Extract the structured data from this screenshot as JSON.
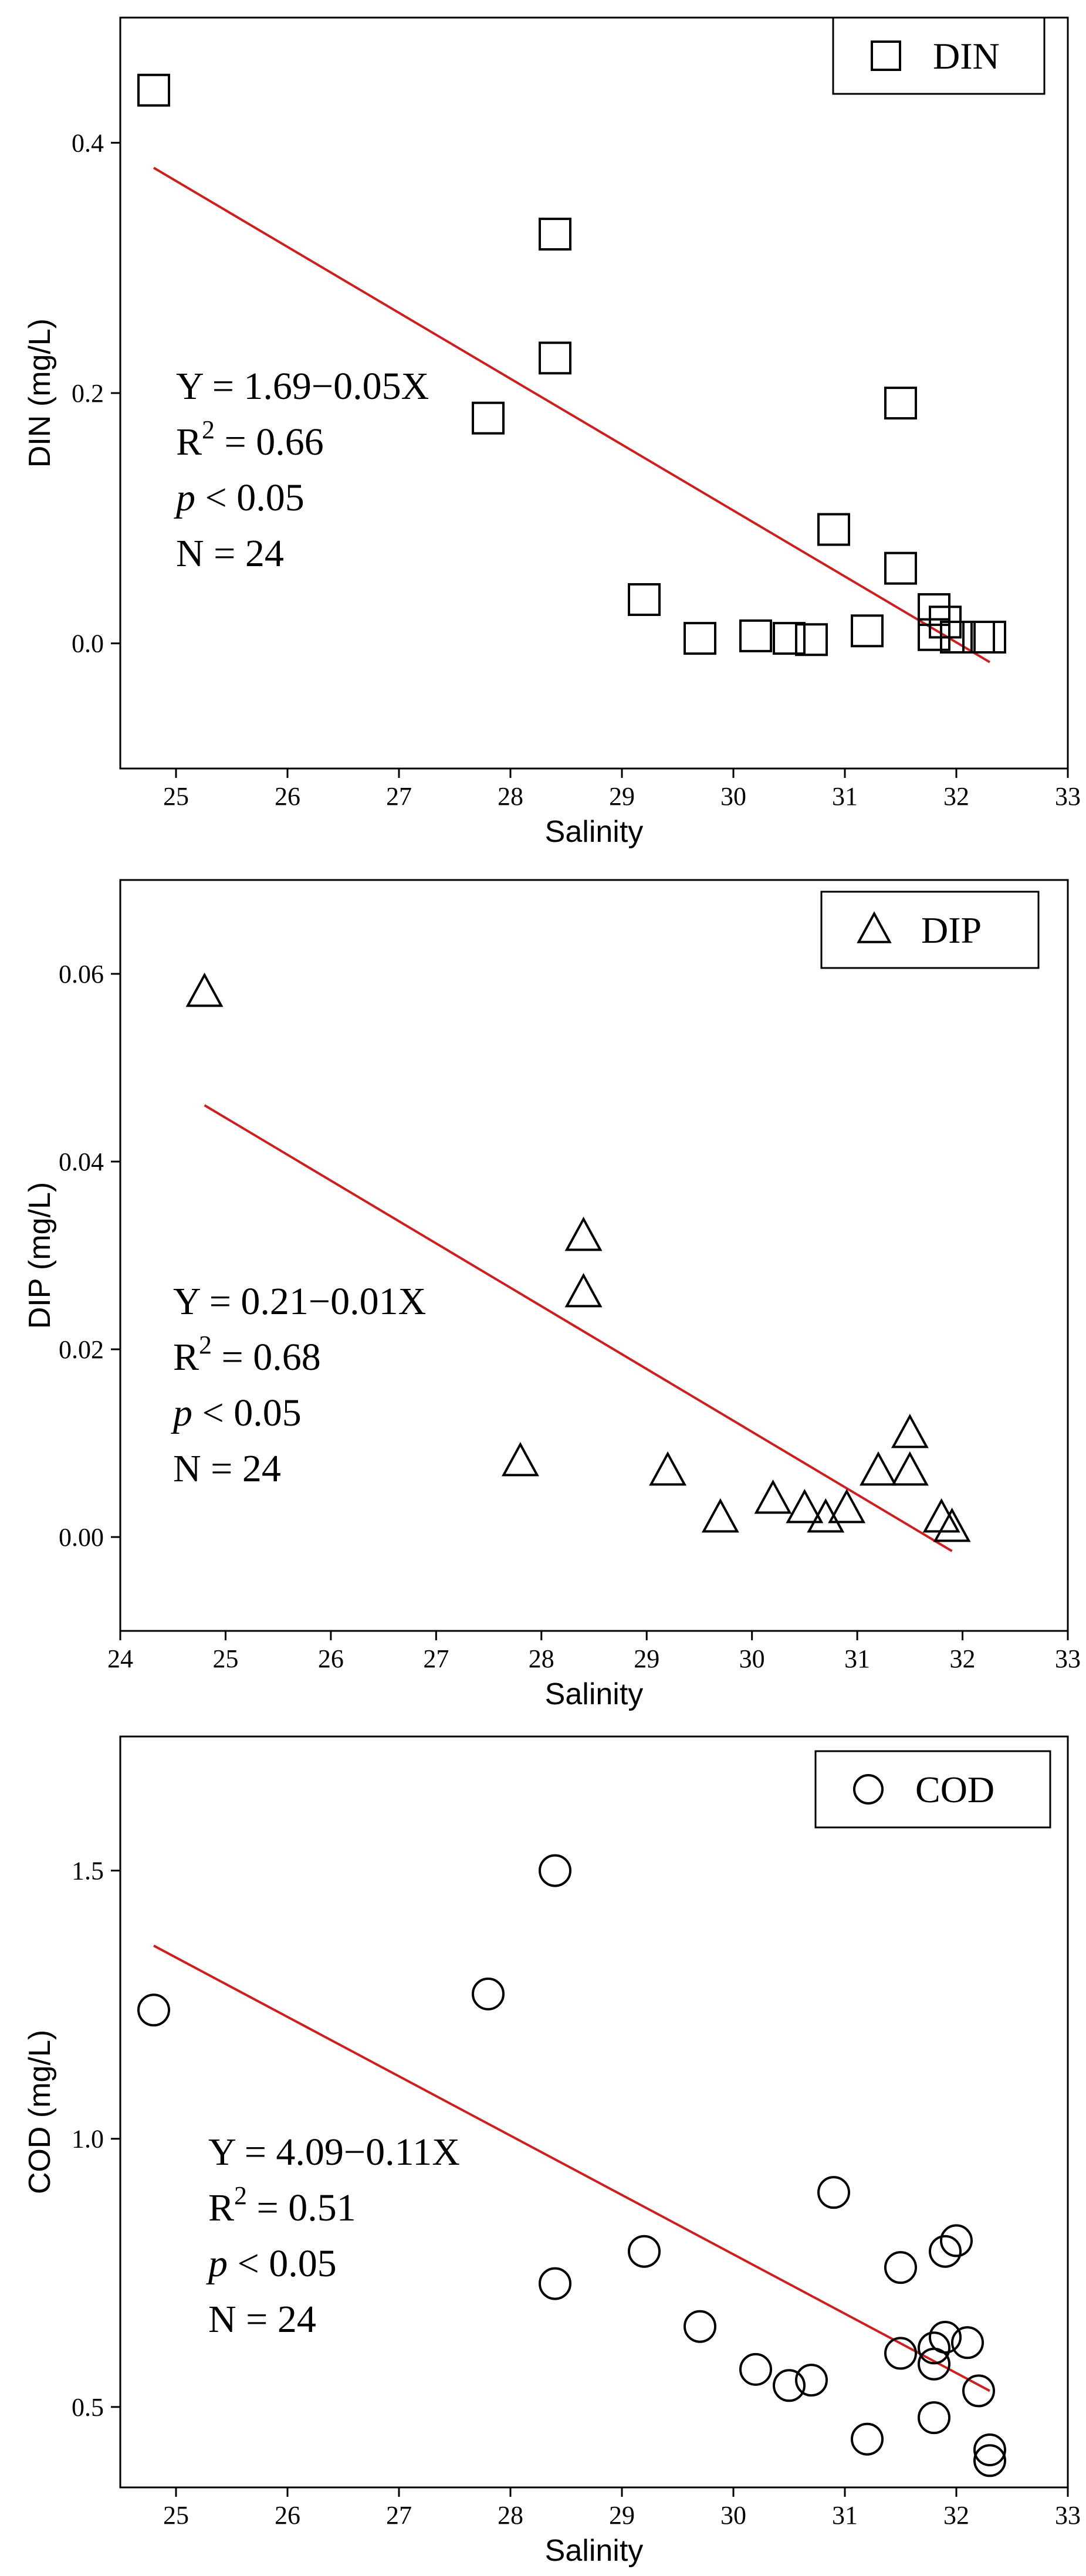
{
  "chart_data": [
    {
      "type": "scatter",
      "id": "din",
      "marker": "square",
      "legend": "DIN",
      "xlabel": "Salinity",
      "ylabel": "DIN (mg/L)",
      "xlim": [
        24.5,
        33
      ],
      "ylim": [
        -0.1,
        0.5
      ],
      "xticks": [
        25,
        26,
        27,
        28,
        29,
        30,
        31,
        32,
        33
      ],
      "yticks": [
        0.0,
        0.2,
        0.4
      ],
      "ytick_labels": [
        "0.0",
        "0.2",
        "0.4"
      ],
      "points": [
        {
          "x": 24.8,
          "y": 0.442
        },
        {
          "x": 27.8,
          "y": 0.18
        },
        {
          "x": 28.4,
          "y": 0.327
        },
        {
          "x": 28.4,
          "y": 0.228
        },
        {
          "x": 29.2,
          "y": 0.035
        },
        {
          "x": 29.7,
          "y": 0.004
        },
        {
          "x": 30.2,
          "y": 0.006
        },
        {
          "x": 30.5,
          "y": 0.004
        },
        {
          "x": 30.7,
          "y": 0.003
        },
        {
          "x": 30.9,
          "y": 0.091
        },
        {
          "x": 31.2,
          "y": 0.01
        },
        {
          "x": 31.5,
          "y": 0.192
        },
        {
          "x": 31.5,
          "y": 0.06
        },
        {
          "x": 31.8,
          "y": 0.027
        },
        {
          "x": 31.8,
          "y": 0.007
        },
        {
          "x": 31.9,
          "y": 0.017
        },
        {
          "x": 32.0,
          "y": 0.005
        },
        {
          "x": 32.2,
          "y": 0.005
        },
        {
          "x": 32.3,
          "y": 0.005
        }
      ],
      "fit": {
        "x1": 24.8,
        "y1": 0.38,
        "x2": 32.3,
        "y2": -0.015
      },
      "annotation": {
        "equation": "Y = 1.69−0.05X",
        "r2_prefix": "R",
        "r2_sup": "2",
        "r2_value": " = 0.66",
        "p_symbol": "p",
        "p_value": " < 0.05",
        "n": "N = 24"
      }
    },
    {
      "type": "scatter",
      "id": "dip",
      "marker": "triangle",
      "legend": "DIP",
      "xlabel": "Salinity",
      "ylabel": "DIP (mg/L)",
      "xlim": [
        24,
        33
      ],
      "ylim": [
        -0.01,
        0.07
      ],
      "xticks": [
        24,
        25,
        26,
        27,
        28,
        29,
        30,
        31,
        32,
        33
      ],
      "yticks": [
        0.0,
        0.02,
        0.04,
        0.06
      ],
      "ytick_labels": [
        "0.00",
        "0.02",
        "0.04",
        "0.06"
      ],
      "points": [
        {
          "x": 24.8,
          "y": 0.058
        },
        {
          "x": 27.8,
          "y": 0.008
        },
        {
          "x": 28.4,
          "y": 0.032
        },
        {
          "x": 28.4,
          "y": 0.026
        },
        {
          "x": 29.2,
          "y": 0.007
        },
        {
          "x": 29.7,
          "y": 0.002
        },
        {
          "x": 30.2,
          "y": 0.004
        },
        {
          "x": 30.5,
          "y": 0.003
        },
        {
          "x": 30.7,
          "y": 0.002
        },
        {
          "x": 30.9,
          "y": 0.003
        },
        {
          "x": 31.2,
          "y": 0.007
        },
        {
          "x": 31.5,
          "y": 0.011
        },
        {
          "x": 31.5,
          "y": 0.007
        },
        {
          "x": 31.8,
          "y": 0.002
        },
        {
          "x": 31.9,
          "y": 0.001
        }
      ],
      "fit": {
        "x1": 24.8,
        "y1": 0.046,
        "x2": 31.9,
        "y2": -0.0015
      },
      "annotation": {
        "equation": "Y = 0.21−0.01X",
        "r2_prefix": "R",
        "r2_sup": "2",
        "r2_value": " = 0.68",
        "p_symbol": "p",
        "p_value": " < 0.05",
        "n": "N = 24"
      }
    },
    {
      "type": "scatter",
      "id": "cod",
      "marker": "circle",
      "legend": "COD",
      "xlabel": "Salinity",
      "ylabel": "COD (mg/L)",
      "xlim": [
        24.5,
        33
      ],
      "ylim": [
        0.35,
        1.75
      ],
      "xticks": [
        25,
        26,
        27,
        28,
        29,
        30,
        31,
        32,
        33
      ],
      "yticks": [
        0.5,
        1.0,
        1.5
      ],
      "ytick_labels": [
        "0.5",
        "1.0",
        "1.5"
      ],
      "points": [
        {
          "x": 24.8,
          "y": 1.24
        },
        {
          "x": 27.8,
          "y": 1.27
        },
        {
          "x": 28.4,
          "y": 1.5
        },
        {
          "x": 28.4,
          "y": 0.73
        },
        {
          "x": 29.2,
          "y": 0.79
        },
        {
          "x": 29.7,
          "y": 0.65
        },
        {
          "x": 30.2,
          "y": 0.57
        },
        {
          "x": 30.5,
          "y": 0.54
        },
        {
          "x": 30.7,
          "y": 0.55
        },
        {
          "x": 30.9,
          "y": 0.9
        },
        {
          "x": 31.2,
          "y": 0.44
        },
        {
          "x": 31.5,
          "y": 0.76
        },
        {
          "x": 31.5,
          "y": 0.6
        },
        {
          "x": 31.8,
          "y": 0.61
        },
        {
          "x": 31.8,
          "y": 0.58
        },
        {
          "x": 31.8,
          "y": 0.48
        },
        {
          "x": 31.9,
          "y": 0.79
        },
        {
          "x": 31.9,
          "y": 0.63
        },
        {
          "x": 32.0,
          "y": 0.81
        },
        {
          "x": 32.1,
          "y": 0.62
        },
        {
          "x": 32.2,
          "y": 0.53
        },
        {
          "x": 32.3,
          "y": 0.42
        },
        {
          "x": 32.3,
          "y": 0.4
        }
      ],
      "fit": {
        "x1": 24.8,
        "y1": 1.36,
        "x2": 32.3,
        "y2": 0.53
      },
      "annotation": {
        "equation": "Y = 4.09−0.11X",
        "r2_prefix": "R",
        "r2_sup": "2",
        "r2_value": " = 0.51",
        "p_symbol": "p",
        "p_value": " < 0.05",
        "n": "N = 24"
      }
    }
  ]
}
